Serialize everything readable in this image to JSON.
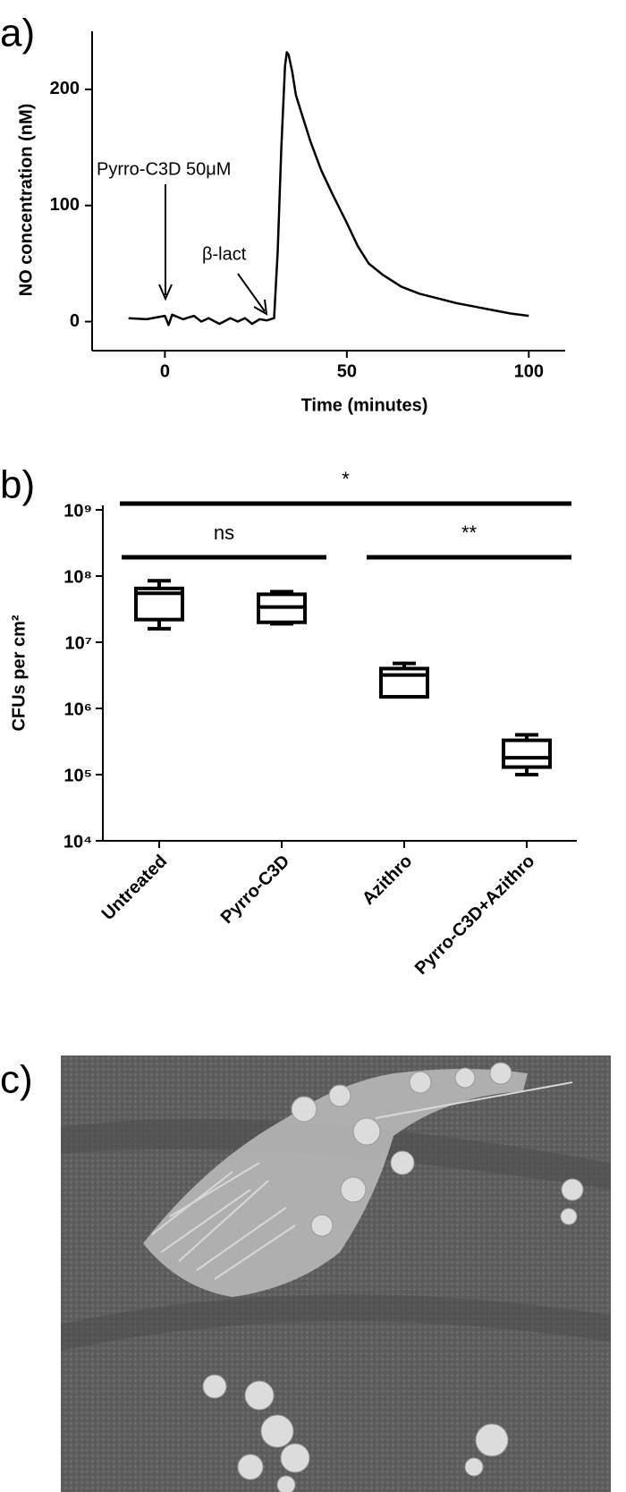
{
  "chart_data": [
    {
      "type": "line",
      "panel_label": "a)",
      "x_label": "Time (minutes)",
      "y_label": "NO concentration (nM)",
      "annotations": [
        "Pyrro-C3D 50μM",
        "β-lact"
      ],
      "x": [
        -10,
        -5,
        0,
        1,
        2,
        5,
        8,
        10,
        12,
        15,
        18,
        20,
        22,
        24,
        26,
        28,
        30,
        31,
        32,
        33,
        33.5,
        34,
        35,
        36,
        38,
        40,
        43,
        46,
        50,
        53,
        56,
        60,
        65,
        70,
        75,
        80,
        85,
        90,
        95,
        100
      ],
      "values": [
        3,
        2,
        5,
        -3,
        6,
        2,
        5,
        0,
        3,
        -2,
        3,
        0,
        3,
        -2,
        2,
        1,
        3,
        60,
        150,
        220,
        232,
        230,
        215,
        195,
        175,
        155,
        130,
        110,
        85,
        65,
        50,
        40,
        30,
        24,
        20,
        16,
        13,
        10,
        7,
        5
      ],
      "color": "#000000",
      "xlim": [
        -20,
        110
      ],
      "xticks": [
        0,
        50,
        100
      ],
      "ylim": [
        -25,
        250
      ],
      "yticks": [
        0,
        100,
        200
      ]
    },
    {
      "type": "box",
      "panel_label": "b)",
      "y_label": "CFUs per cm²",
      "log_y": true,
      "categories": [
        "Untreated",
        "Pyrro-C3D",
        "Azithro",
        "Pyrro-C3D+Azithro"
      ],
      "whisker_high": [
        85000000,
        58000000,
        4800000,
        400000
      ],
      "q3": [
        65000000,
        53000000,
        4000000,
        330000
      ],
      "median": [
        55000000,
        34000000,
        3200000,
        180000
      ],
      "q1": [
        22000000,
        20000000,
        1500000,
        130000
      ],
      "whisker_low": [
        16000000,
        19000000,
        1500000,
        100000
      ],
      "color": "#000000",
      "ylim": [
        10000,
        1000000000
      ],
      "yticks": [
        {
          "value": 10000,
          "label": "10⁴"
        },
        {
          "value": 100000,
          "label": "10⁵"
        },
        {
          "value": 1000000,
          "label": "10⁶"
        },
        {
          "value": 10000000,
          "label": "10⁷"
        },
        {
          "value": 100000000,
          "label": "10⁸"
        },
        {
          "value": 1000000000,
          "label": "10⁹"
        }
      ],
      "significance": [
        {
          "label": "*",
          "from": "Untreated",
          "to": "Pyrro-C3D+Azithro"
        },
        {
          "label": "ns",
          "from": "Untreated",
          "to": "Pyrro-C3D"
        },
        {
          "label": "**",
          "from": "Azithro",
          "to": "Pyrro-C3D+Azithro"
        }
      ]
    }
  ],
  "image_panel": {
    "label": "c)"
  }
}
